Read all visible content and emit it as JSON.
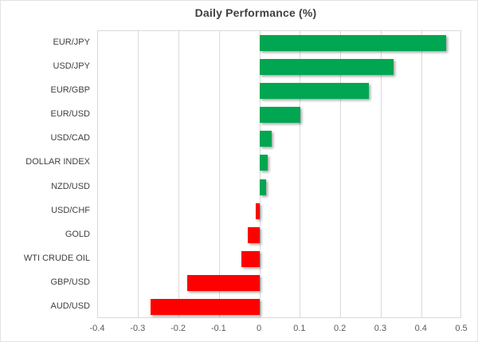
{
  "chart_data": {
    "type": "bar",
    "orientation": "horizontal",
    "title": "Daily Performance (%)",
    "categories": [
      "EUR/JPY",
      "USD/JPY",
      "EUR/GBP",
      "EUR/USD",
      "USD/CAD",
      "DOLLAR INDEX",
      "NZD/USD",
      "USD/CHF",
      "GOLD",
      "WTI CRUDE OIL",
      "GBP/USD",
      "AUD/USD"
    ],
    "values": [
      0.46,
      0.33,
      0.27,
      0.1,
      0.03,
      0.02,
      0.015,
      -0.01,
      -0.03,
      -0.045,
      -0.18,
      -0.27
    ],
    "xlabel": "",
    "ylabel": "",
    "xlim": [
      -0.4,
      0.5
    ],
    "x_tick_labels": [
      "-0.4",
      "-0.3",
      "-0.2",
      "-0.1",
      "0",
      "0.1",
      "0.2",
      "0.3",
      "0.4",
      "0.5"
    ],
    "x_tick_values": [
      -0.4,
      -0.3,
      -0.2,
      -0.1,
      0,
      0.1,
      0.2,
      0.3,
      0.4,
      0.5
    ],
    "grid": true,
    "legend": false,
    "colors": {
      "positive": "#00a651",
      "negative": "#ff0000",
      "gridline": "#d9d9d9",
      "title_text": "#404040",
      "tick_text": "#595959"
    }
  }
}
